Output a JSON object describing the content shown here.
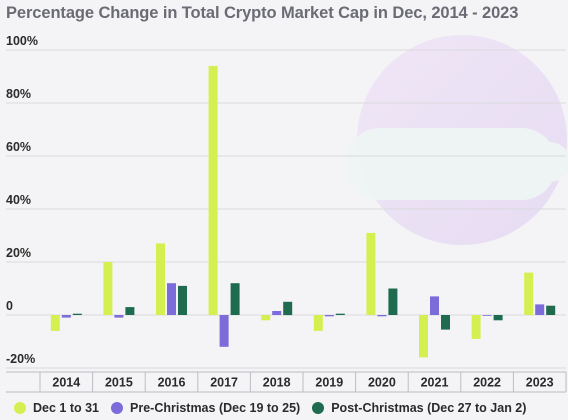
{
  "chart_data": {
    "type": "bar",
    "title": "Percentage Change in Total Crypto Market Cap in Dec, 2014 - 2023",
    "categories": [
      "2014",
      "2015",
      "2016",
      "2017",
      "2018",
      "2019",
      "2020",
      "2021",
      "2022",
      "2023"
    ],
    "series": [
      {
        "name": "Dec 1 to 31",
        "color": "#d4f050",
        "values": [
          -6,
          20,
          27,
          94,
          -2,
          -6,
          31,
          -16,
          -9,
          16
        ]
      },
      {
        "name": "Pre-Christmas (Dec 19 to 25)",
        "color": "#7b6cd9",
        "values": [
          -1,
          -1,
          12,
          -12,
          1.5,
          -0.5,
          -0.5,
          7,
          0,
          4
        ]
      },
      {
        "name": "Post-Christmas (Dec 27 to Jan 2)",
        "color": "#1f6b4f",
        "values": [
          0.5,
          3,
          11,
          12,
          5,
          0.5,
          10,
          -5.5,
          -2,
          3.5
        ]
      }
    ],
    "y_ticks": [
      100,
      80,
      60,
      40,
      20,
      0,
      -20
    ],
    "y_tick_labels": [
      "100%",
      "80%",
      "60%",
      "40%",
      "20%",
      "0",
      "-20%"
    ],
    "ylim": [
      -20,
      100
    ],
    "grid": true,
    "legend_position": "bottom"
  }
}
